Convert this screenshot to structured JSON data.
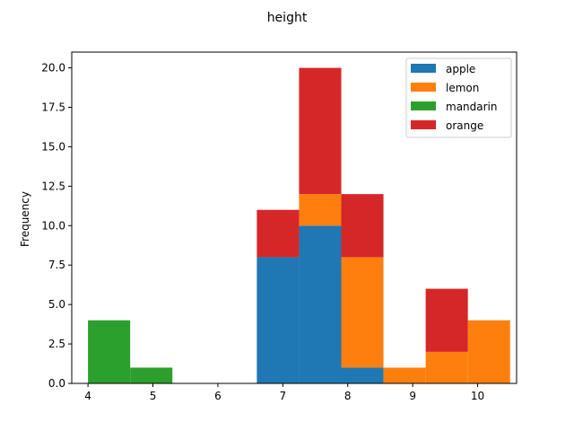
{
  "chart_data": {
    "type": "bar",
    "stacked": true,
    "title": "height",
    "xlabel": "",
    "ylabel": "Frequency",
    "xlim": [
      3.75,
      10.6
    ],
    "ylim": [
      0,
      21
    ],
    "xticks": [
      4,
      5,
      6,
      7,
      8,
      9,
      10
    ],
    "yticks": [
      0.0,
      2.5,
      5.0,
      7.5,
      10.0,
      12.5,
      15.0,
      17.5,
      20.0
    ],
    "ytick_labels": [
      "0.0",
      "2.5",
      "5.0",
      "7.5",
      "10.0",
      "12.5",
      "15.0",
      "17.5",
      "20.0"
    ],
    "bins": [
      [
        4.0,
        4.65
      ],
      [
        4.65,
        5.3
      ],
      [
        5.3,
        5.95
      ],
      [
        5.95,
        6.6
      ],
      [
        6.6,
        7.25
      ],
      [
        7.25,
        7.9
      ],
      [
        7.9,
        8.55
      ],
      [
        8.55,
        9.2
      ],
      [
        9.2,
        9.85
      ],
      [
        9.85,
        10.5
      ]
    ],
    "series": [
      {
        "name": "apple",
        "color": "#1f77b4",
        "values": [
          0,
          0,
          0,
          0,
          8,
          10,
          1,
          0,
          0,
          0
        ]
      },
      {
        "name": "lemon",
        "color": "#ff7f0e",
        "values": [
          0,
          0,
          0,
          0,
          0,
          2,
          7,
          1,
          2,
          4
        ]
      },
      {
        "name": "mandarin",
        "color": "#2ca02c",
        "values": [
          4,
          1,
          0,
          0,
          0,
          0,
          0,
          0,
          0,
          0
        ]
      },
      {
        "name": "orange",
        "color": "#d62728",
        "values": [
          0,
          0,
          0,
          0,
          3,
          8,
          4,
          0,
          4,
          0
        ]
      }
    ],
    "grid": false,
    "legend_position": "top-right"
  }
}
